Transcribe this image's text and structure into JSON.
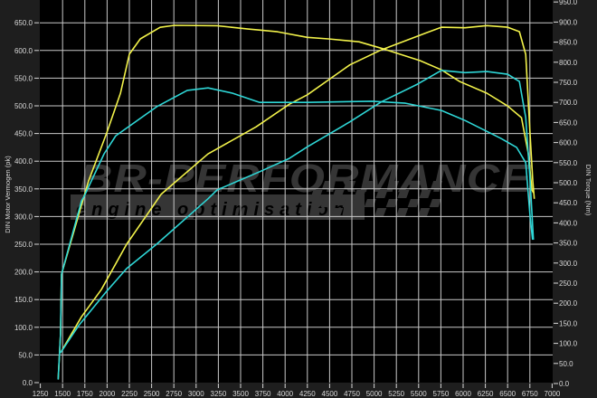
{
  "chart_data": {
    "type": "line",
    "title": "",
    "xlabel": "",
    "ylabel_left": "DIN Motor Vermogen (pk)",
    "ylabel_right": "DIN Torque (Nm)",
    "xlim": [
      1250,
      7000
    ],
    "xticks": [
      1250,
      1500,
      1750,
      2000,
      2250,
      2500,
      2750,
      3000,
      3250,
      3500,
      3750,
      4000,
      4250,
      4500,
      4750,
      5000,
      5250,
      5500,
      5750,
      6000,
      6250,
      6500,
      6750,
      7000
    ],
    "ylim_left": [
      0,
      650
    ],
    "yticks_left": [
      "0.0",
      "50.0",
      "100.0",
      "150.0",
      "200.0",
      "250.0",
      "300.0",
      "350.0",
      "400.0",
      "450.0",
      "500.0",
      "550.0",
      "600.0",
      "650.0"
    ],
    "ylim_right": [
      0,
      950
    ],
    "yticks_right": [
      "0.0",
      "50.0",
      "100.0",
      "150.0",
      "200.0",
      "250.0",
      "300.0",
      "350.0",
      "400.0",
      "450.0",
      "500.0",
      "550.0",
      "600.0",
      "650.0",
      "700.0",
      "750.0",
      "800.0",
      "850.0",
      "900.0",
      "950.0"
    ],
    "grid": true,
    "background": "#000000",
    "series": [
      {
        "color": "#f2f24a",
        "axis": "left",
        "x": [
          1477,
          1712,
          1935,
          2220,
          2606,
          3133,
          3673,
          4048,
          4250,
          4728,
          5079,
          5587,
          5756,
          6021,
          6266,
          6500,
          6632,
          6703,
          6753,
          6783,
          6800
        ],
        "y": [
          54,
          119,
          168,
          250,
          340,
          413,
          462,
          503,
          520,
          574,
          601,
          632,
          642,
          641,
          645,
          642,
          634,
          593,
          446,
          364,
          332
        ]
      },
      {
        "color": "#f2f24a",
        "axis": "right",
        "x": [
          1450,
          1477,
          1488,
          1732,
          1793,
          1996,
          2150,
          2250,
          2373,
          2596,
          2758,
          3236,
          3570,
          3914,
          4250,
          4487,
          4829,
          5079,
          5515,
          5756,
          5960,
          6266,
          6500,
          6655,
          6733,
          6773,
          6790
        ],
        "y": [
          10,
          122,
          272,
          459,
          505,
          624,
          723,
          820,
          858,
          887,
          892,
          891,
          883,
          876,
          862,
          858,
          851,
          835,
          804,
          781,
          752,
          723,
          691,
          662,
          572,
          482,
          475
        ]
      },
      {
        "color": "#2ed6d6",
        "axis": "left",
        "x": [
          1477,
          1680,
          1985,
          2220,
          2556,
          3133,
          3236,
          3714,
          4048,
          4250,
          4728,
          5079,
          5486,
          5756,
          6021,
          6266,
          6500,
          6632,
          6703,
          6753,
          6790
        ],
        "y": [
          54,
          103,
          163,
          206,
          250,
          332,
          348,
          381,
          405,
          426,
          471,
          507,
          539,
          564,
          560,
          562,
          557,
          544,
          479,
          364,
          258
        ]
      },
      {
        "color": "#2ed6d6",
        "axis": "right",
        "x": [
          1450,
          1477,
          1488,
          1712,
          1742,
          1966,
          2098,
          2556,
          2900,
          3134,
          3408,
          3714,
          4250,
          4976,
          5352,
          5756,
          6021,
          6428,
          6601,
          6703,
          6753,
          6780
        ],
        "y": [
          10,
          122,
          272,
          455,
          466,
          572,
          617,
          689,
          730,
          736,
          723,
          700,
          700,
          703,
          698,
          680,
          655,
          610,
          588,
          550,
          414,
          358
        ]
      }
    ]
  },
  "watermark": {
    "brand": "BR-PERFORMANCE",
    "tagline": "engine optimisation"
  }
}
